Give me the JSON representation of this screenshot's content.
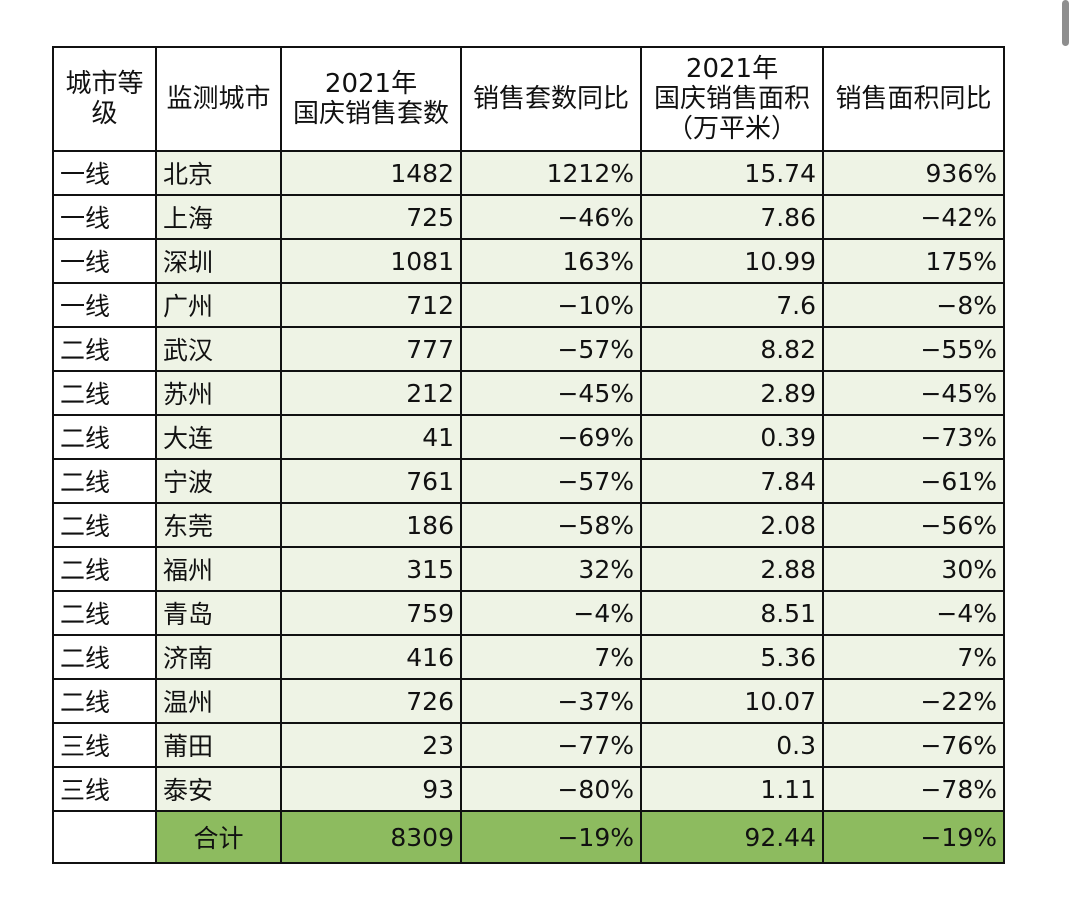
{
  "table": {
    "header": [
      [
        "城市等",
        "级"
      ],
      [
        "监测城市"
      ],
      [
        "2021年",
        "国庆销售套数"
      ],
      [
        "销售套数同比"
      ],
      [
        "2021年",
        "国庆销售面积",
        "（万平米）"
      ],
      [
        "销售面积同比"
      ]
    ],
    "rows": [
      [
        "一线",
        "北京",
        "1482",
        "1212%",
        "15.74",
        "936%"
      ],
      [
        "一线",
        "上海",
        "725",
        "−46%",
        "7.86",
        "−42%"
      ],
      [
        "一线",
        "深圳",
        "1081",
        "163%",
        "10.99",
        "175%"
      ],
      [
        "一线",
        "广州",
        "712",
        "−10%",
        "7.6",
        "−8%"
      ],
      [
        "二线",
        "武汉",
        "777",
        "−57%",
        "8.82",
        "−55%"
      ],
      [
        "二线",
        "苏州",
        "212",
        "−45%",
        "2.89",
        "−45%"
      ],
      [
        "二线",
        "大连",
        "41",
        "−69%",
        "0.39",
        "−73%"
      ],
      [
        "二线",
        "宁波",
        "761",
        "−57%",
        "7.84",
        "−61%"
      ],
      [
        "二线",
        "东莞",
        "186",
        "−58%",
        "2.08",
        "−56%"
      ],
      [
        "二线",
        "福州",
        "315",
        "32%",
        "2.88",
        "30%"
      ],
      [
        "二线",
        "青岛",
        "759",
        "−4%",
        "8.51",
        "−4%"
      ],
      [
        "二线",
        "济南",
        "416",
        "7%",
        "5.36",
        "7%"
      ],
      [
        "二线",
        "温州",
        "726",
        "−37%",
        "10.07",
        "−22%"
      ],
      [
        "三线",
        "莆田",
        "23",
        "−77%",
        "0.3",
        "−76%"
      ],
      [
        "三线",
        "泰安",
        "93",
        "−80%",
        "1.11",
        "−78%"
      ]
    ],
    "total": [
      "合计",
      "8309",
      "−19%",
      "92.44",
      "−19%"
    ]
  }
}
